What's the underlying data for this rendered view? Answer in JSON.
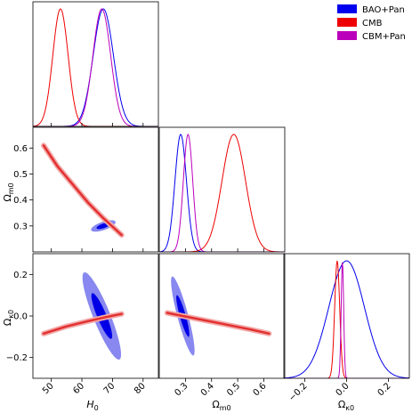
{
  "chart_data": {
    "type": "corner",
    "parameters": [
      {
        "symbol": "H",
        "sub": "0",
        "ticks": [
          50,
          60,
          70,
          80
        ],
        "range": [
          44,
          85
        ]
      },
      {
        "symbol": "Ω",
        "sub": "m0",
        "ticks": [
          0.3,
          0.4,
          0.5,
          0.6
        ],
        "tick_labels": [
          "0.3",
          "0.4",
          "0.5",
          "0.6"
        ],
        "range": [
          0.2,
          0.68
        ]
      },
      {
        "symbol": "Ω",
        "sub": "κ0",
        "ticks": [
          -0.2,
          0.0,
          0.2
        ],
        "tick_labels": [
          "−0.2",
          "0.0",
          "0.2"
        ],
        "range": [
          -0.3,
          0.3
        ]
      }
    ],
    "legend": {
      "placement": "top-right",
      "entries": [
        {
          "label": "BAO+Pan",
          "color": "#0000ee"
        },
        {
          "label": "CMB",
          "color": "#ee0000"
        },
        {
          "label": "CBM+Pan",
          "color": "#bb00bb"
        }
      ]
    },
    "series": [
      {
        "key": "bao",
        "color": "#0000ee",
        "fill_outer": "#8888f0",
        "fill_inner": "#0000e6",
        "marginals": [
          {
            "mu": 67.0,
            "sigma": 3.3
          },
          {
            "mu": 0.282,
            "sigma": 0.022
          },
          {
            "mu": 0.0,
            "sigma": 0.085
          }
        ],
        "contours": [
          {
            "x": 0,
            "y": 1,
            "cx": 67.0,
            "cy": 0.3,
            "a_outer": 4.0,
            "b_outer": 0.022,
            "a_inner": 2.2,
            "b_inner": 0.012,
            "rho": 0.65,
            "type": "ellipse"
          },
          {
            "x": 0,
            "y": 2,
            "cx": 66.5,
            "cy": 0.0,
            "a_outer": 6.3,
            "b_outer": 0.21,
            "a_inner": 3.4,
            "b_inner": 0.11,
            "rho": -0.88,
            "type": "ellipse"
          },
          {
            "x": 1,
            "y": 2,
            "cx": 0.29,
            "cy": 0.0,
            "a_outer": 0.045,
            "b_outer": 0.19,
            "a_inner": 0.025,
            "b_inner": 0.1,
            "rho": -0.88,
            "type": "ellipse"
          }
        ]
      },
      {
        "key": "cmb",
        "color": "#ee0000",
        "fill_outer": "#f2aaaa",
        "fill_inner": "#e33030",
        "marginals": [
          {
            "mu": 53.0,
            "sigma": 2.5
          },
          {
            "mu": 0.485,
            "sigma": 0.045
          },
          {
            "mu": -0.045,
            "sigma": 0.012
          }
        ],
        "bands": [
          {
            "x": 0,
            "y": 1,
            "points": [
              [
                47.5,
                0.61
              ],
              [
                52,
                0.53
              ],
              [
                57,
                0.46
              ],
              [
                62,
                0.39
              ],
              [
                67,
                0.33
              ],
              [
                73,
                0.265
              ]
            ]
          },
          {
            "x": 0,
            "y": 2,
            "points": [
              [
                47.5,
                -0.085
              ],
              [
                55,
                -0.05
              ],
              [
                62,
                -0.025
              ],
              [
                68,
                -0.005
              ],
              [
                73,
                0.01
              ]
            ]
          },
          {
            "x": 1,
            "y": 2,
            "points": [
              [
                0.23,
                0.015
              ],
              [
                0.35,
                -0.015
              ],
              [
                0.45,
                -0.04
              ],
              [
                0.55,
                -0.065
              ],
              [
                0.62,
                -0.085
              ]
            ]
          }
        ]
      },
      {
        "key": "cbm",
        "color": "#bb00bb",
        "marginals": [
          {
            "mu": 66.5,
            "sigma": 2.9
          },
          {
            "mu": 0.31,
            "sigma": 0.018
          },
          {
            "mu": -0.02,
            "sigma": 0.006
          }
        ]
      }
    ]
  }
}
